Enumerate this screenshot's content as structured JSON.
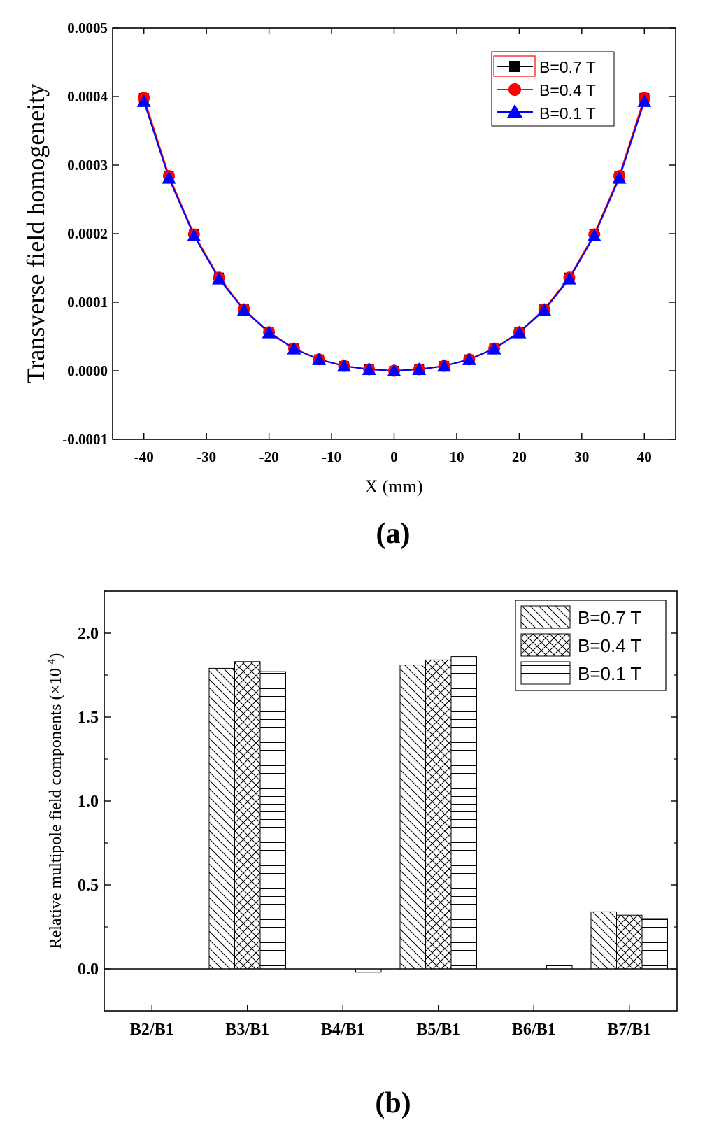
{
  "chart_data": [
    {
      "type": "line",
      "panel_label": "(a)",
      "xlabel": "X (mm)",
      "ylabel": "Transverse field homogeneity",
      "xlim": [
        -45,
        45
      ],
      "ylim": [
        -0.0001,
        0.0005
      ],
      "xticks": [
        -40,
        -30,
        -20,
        -10,
        0,
        10,
        20,
        30,
        40
      ],
      "xtick_labels": [
        "-40",
        "-30",
        "-20",
        "-10",
        "0",
        "10",
        "20",
        "30",
        "40"
      ],
      "yticks": [
        -0.0001,
        0.0,
        0.0001,
        0.0002,
        0.0003,
        0.0004,
        0.0005
      ],
      "ytick_labels": [
        "-0.0001",
        "0.0000",
        "0.0001",
        "0.0002",
        "0.0003",
        "0.0004",
        "0.0005"
      ],
      "legend_position": "top-right",
      "x": [
        -40,
        -36,
        -32,
        -28,
        -24,
        -20,
        -16,
        -12,
        -8,
        -4,
        0,
        4,
        8,
        12,
        16,
        20,
        24,
        28,
        32,
        36,
        40
      ],
      "series": [
        {
          "name": "B=0.7 T",
          "color": "#000000",
          "marker": "square",
          "values": [
            0.000398,
            0.000284,
            0.000199,
            0.000136,
            8.96e-05,
            5.62e-05,
            3.24e-05,
            1.66e-05,
            7e-06,
            2.1e-06,
            0.0,
            2.1e-06,
            7e-06,
            1.66e-05,
            3.24e-05,
            5.62e-05,
            8.96e-05,
            0.000136,
            0.000199,
            0.000284,
            0.000398
          ]
        },
        {
          "name": "B=0.4 T",
          "color": "#ff0000",
          "marker": "circle",
          "values": [
            0.000398,
            0.000284,
            0.000199,
            0.000136,
            8.96e-05,
            5.62e-05,
            3.24e-05,
            1.66e-05,
            7e-06,
            2.1e-06,
            0.0,
            2.1e-06,
            7e-06,
            1.66e-05,
            3.24e-05,
            5.62e-05,
            8.96e-05,
            0.000136,
            0.000199,
            0.000284,
            0.000398
          ]
        },
        {
          "name": "B=0.1 T",
          "color": "#0000ff",
          "marker": "triangle",
          "values": [
            0.000393,
            0.000281,
            0.000197,
            0.000134,
            8.85e-05,
            5.55e-05,
            3.2e-05,
            1.64e-05,
            6.9e-06,
            2e-06,
            0.0,
            2e-06,
            6.9e-06,
            1.64e-05,
            3.2e-05,
            5.55e-05,
            8.85e-05,
            0.000134,
            0.000197,
            0.000281,
            0.000393
          ]
        }
      ]
    },
    {
      "type": "bar",
      "panel_label": "(b)",
      "xlabel": "",
      "ylabel_main": "Relative multipole field components (×10",
      "ylabel_exp": "-4",
      "ylabel_close": ")",
      "ylim": [
        -0.25,
        2.25
      ],
      "yticks": [
        0.0,
        0.5,
        1.0,
        1.5,
        2.0
      ],
      "ytick_labels": [
        "0.0",
        "0.5",
        "1.0",
        "1.5",
        "2.0"
      ],
      "legend_position": "top-right",
      "categories": [
        "B2/B1",
        "B3/B1",
        "B4/B1",
        "B5/B1",
        "B6/B1",
        "B7/B1"
      ],
      "series": [
        {
          "name": "B=0.7 T",
          "pattern": "back-diagonal-hatch",
          "values": [
            0.0,
            1.79,
            0.0,
            1.81,
            0.0,
            0.34
          ]
        },
        {
          "name": "B=0.4 T",
          "pattern": "cross-hatch",
          "values": [
            0.0,
            1.83,
            0.0,
            1.84,
            0.0,
            0.32
          ]
        },
        {
          "name": "B=0.1 T",
          "pattern": "horizontal-lines",
          "values": [
            0.0,
            1.77,
            -0.02,
            1.86,
            0.02,
            0.3
          ]
        }
      ]
    }
  ]
}
